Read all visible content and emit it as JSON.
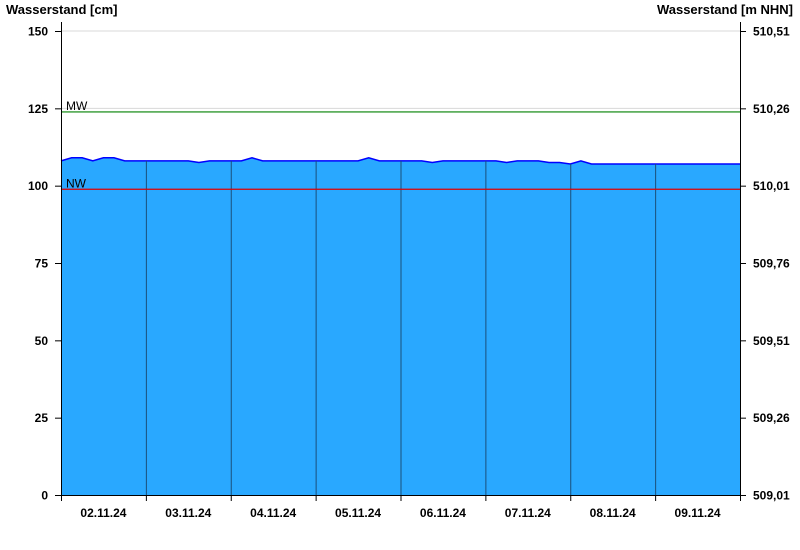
{
  "chart_data": {
    "type": "area",
    "ylabel_left": "Wasserstand [cm]",
    "ylabel_right": "Wasserstand [m NHN]",
    "ylim": [
      0,
      150
    ],
    "yticks_left": [
      "0",
      "25",
      "50",
      "75",
      "100",
      "125",
      "150"
    ],
    "yticks_right": [
      "509,01",
      "509,26",
      "509,51",
      "509,76",
      "510,01",
      "510,26",
      "510,51"
    ],
    "xlim_days": [
      0,
      8
    ],
    "xtick_labels": [
      "02.11.24",
      "03.11.24",
      "04.11.24",
      "05.11.24",
      "06.11.24",
      "07.11.24",
      "08.11.24",
      "09.11.24"
    ],
    "sample_interval_hours": 3,
    "series": [
      {
        "values": [
          108,
          109,
          109,
          108,
          109,
          109,
          108,
          108,
          108,
          108,
          108,
          108,
          108,
          107.5,
          108,
          108,
          108,
          108,
          109,
          108,
          108,
          108,
          108,
          108,
          108,
          108,
          108,
          108,
          108,
          109,
          108,
          108,
          108,
          108,
          108,
          107.5,
          108,
          108,
          108,
          108,
          108,
          108,
          107.5,
          108,
          108,
          108,
          107.5,
          107.5,
          107,
          108,
          107,
          107,
          107,
          107,
          107,
          107,
          107,
          107,
          107,
          107,
          107,
          107,
          107,
          107,
          107
        ]
      }
    ],
    "reference_lines": [
      {
        "label": "MW",
        "value": 124,
        "color": "#008000"
      },
      {
        "label": "NW",
        "value": 99,
        "color": "#e00000"
      }
    ],
    "colors": {
      "fill": "#29a8ff",
      "line": "#0000ff",
      "day_lines": "#1a4f7a"
    },
    "grid": true
  }
}
